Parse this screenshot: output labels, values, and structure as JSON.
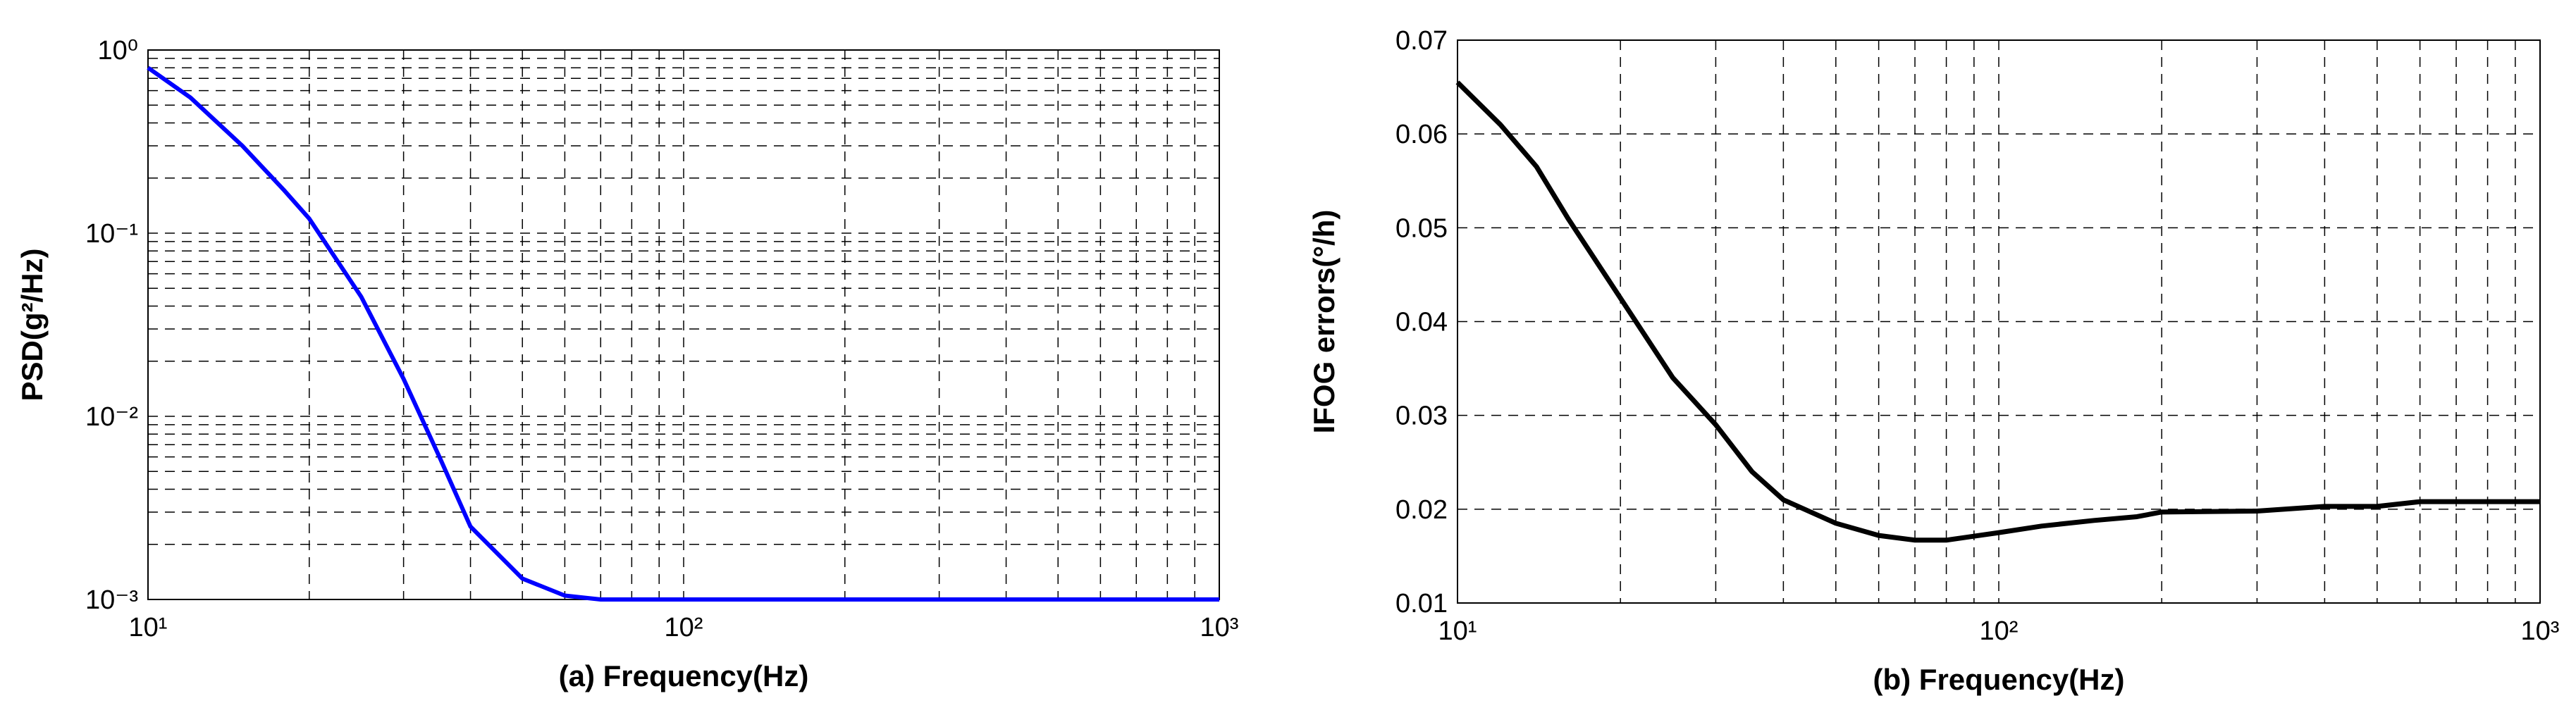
{
  "chart_data": [
    {
      "type": "line",
      "xlabel": "(a) Frequency(Hz)",
      "ylabel": "PSD(g²/Hz)",
      "x": [
        10,
        12,
        15,
        18,
        20,
        25,
        30,
        35,
        40,
        50,
        60,
        70,
        100,
        200,
        1000
      ],
      "series": [
        {
          "color": "#0000ff",
          "values": [
            0.8,
            0.55,
            0.3,
            0.17,
            0.12,
            0.045,
            0.016,
            0.006,
            0.0025,
            0.0013,
            0.00105,
            0.001,
            0.001,
            0.001,
            0.001
          ]
        }
      ],
      "xscale": "log",
      "yscale": "log",
      "xlim": [
        10,
        1000
      ],
      "ylim": [
        0.001,
        1
      ],
      "xticks": [
        {
          "value": 10,
          "label": "10¹"
        },
        {
          "value": 100,
          "label": "10²"
        },
        {
          "value": 1000,
          "label": "10³"
        }
      ],
      "yticks": [
        {
          "value": 0.001,
          "label": "10⁻³"
        },
        {
          "value": 0.01,
          "label": "10⁻²"
        },
        {
          "value": 0.1,
          "label": "10⁻¹"
        },
        {
          "value": 1,
          "label": "10⁰"
        }
      ],
      "x_minor_grid": [
        20,
        30,
        40,
        50,
        60,
        70,
        80,
        90,
        200,
        300,
        400,
        500,
        600,
        700,
        800,
        900
      ],
      "y_minor_grid": [
        0.002,
        0.003,
        0.004,
        0.005,
        0.006,
        0.007,
        0.008,
        0.009,
        0.02,
        0.03,
        0.04,
        0.05,
        0.06,
        0.07,
        0.08,
        0.09,
        0.2,
        0.3,
        0.4,
        0.5,
        0.6,
        0.7,
        0.8,
        0.9
      ],
      "grid": true
    },
    {
      "type": "line",
      "xlabel": "(b) Frequency(Hz)",
      "ylabel": "IFOG errors(°/h)",
      "x": [
        10,
        12,
        14,
        16,
        20,
        25,
        30,
        35,
        40,
        50,
        60,
        70,
        80,
        100,
        120,
        150,
        180,
        200,
        300,
        400,
        500,
        600,
        1000
      ],
      "series": [
        {
          "color": "#000000",
          "values": [
            0.0655,
            0.061,
            0.0565,
            0.051,
            0.0425,
            0.034,
            0.029,
            0.024,
            0.021,
            0.0185,
            0.0172,
            0.0167,
            0.0167,
            0.0175,
            0.0182,
            0.0188,
            0.0192,
            0.0197,
            0.0198,
            0.0203,
            0.0203,
            0.0208,
            0.0208
          ]
        }
      ],
      "xscale": "log",
      "yscale": "linear",
      "xlim": [
        10,
        1000
      ],
      "ylim": [
        0.01,
        0.07
      ],
      "xticks": [
        {
          "value": 10,
          "label": "10¹"
        },
        {
          "value": 100,
          "label": "10²"
        },
        {
          "value": 1000,
          "label": "10³"
        }
      ],
      "yticks": [
        0.01,
        0.02,
        0.03,
        0.04,
        0.05,
        0.06,
        0.07
      ],
      "x_minor_grid": [
        20,
        30,
        40,
        50,
        60,
        70,
        80,
        90,
        200,
        300,
        400,
        500,
        600,
        700,
        800,
        900
      ],
      "grid": true
    }
  ]
}
